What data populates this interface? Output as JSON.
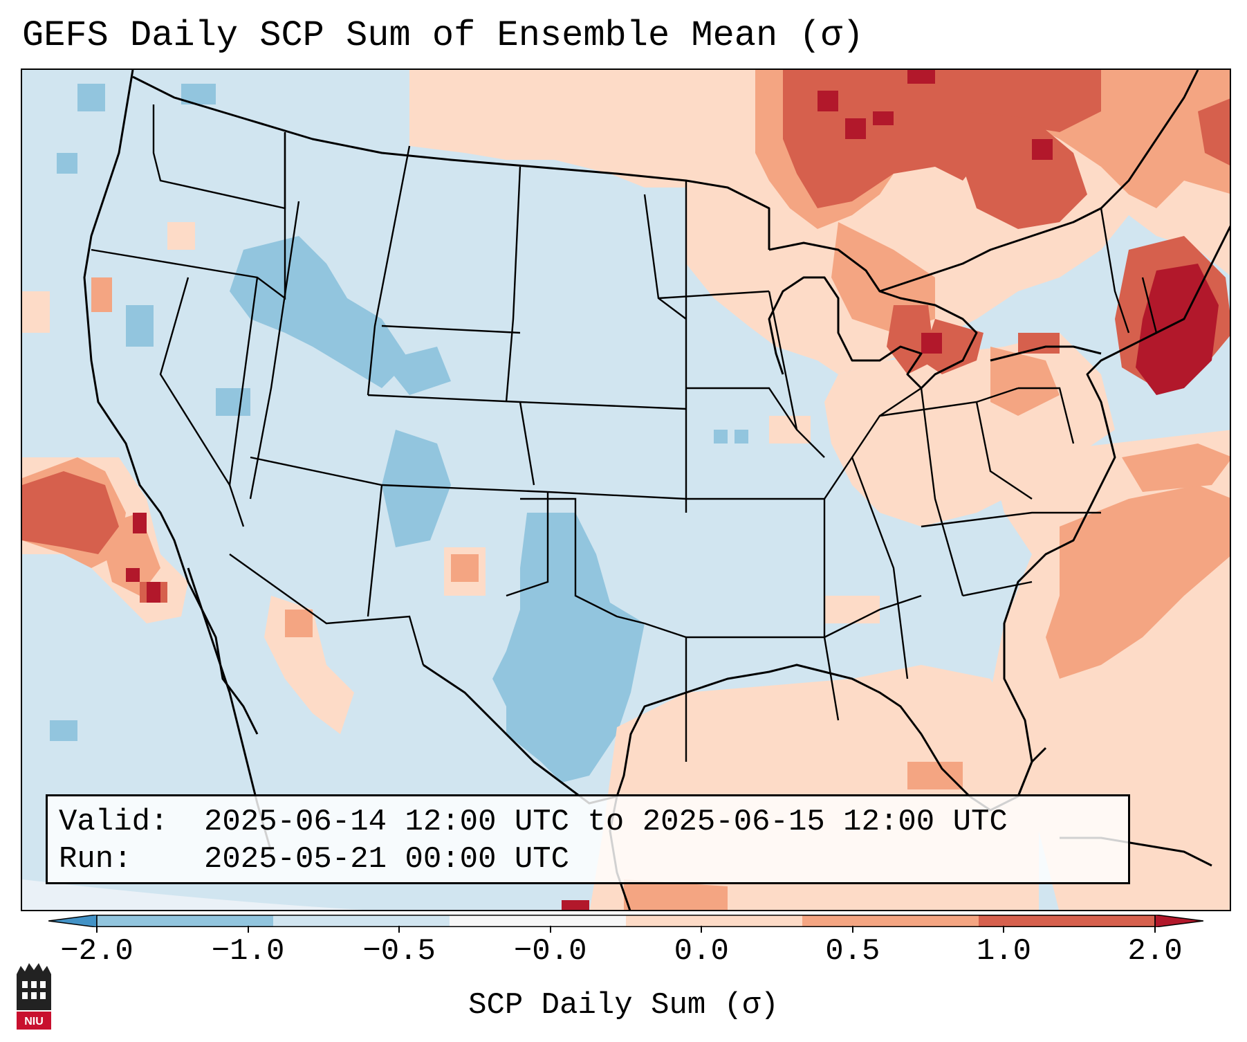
{
  "header": {
    "title": "GEFS Daily SCP Sum of Ensemble Mean (σ)"
  },
  "info_box": {
    "valid_label": "Valid:",
    "valid_value": "2025-06-14 12:00 UTC to 2025-06-15 12:00 UTC",
    "run_label": "Run:",
    "run_value": "2025-05-21 00:00 UTC"
  },
  "colorbar": {
    "label": "SCP Daily Sum (σ)",
    "ticks": [
      "−2.0",
      "−1.0",
      "−0.5",
      "−0.0",
      "0.0",
      "0.5",
      "1.0",
      "2.0"
    ],
    "colors": [
      "#4292c6",
      "#92c5de",
      "#d1e5f0",
      "#f7f7f7",
      "#fddbc7",
      "#f4a582",
      "#d6604d",
      "#b2182b"
    ]
  },
  "logo": {
    "text": "NIU"
  },
  "colors": {
    "strong_neg": "#92c5de",
    "weak_neg": "#d1e5f0",
    "weak_pos": "#fddbc7",
    "mod_pos": "#f4a582",
    "strong_pos": "#d6604d",
    "extreme_pos": "#b2182b"
  }
}
